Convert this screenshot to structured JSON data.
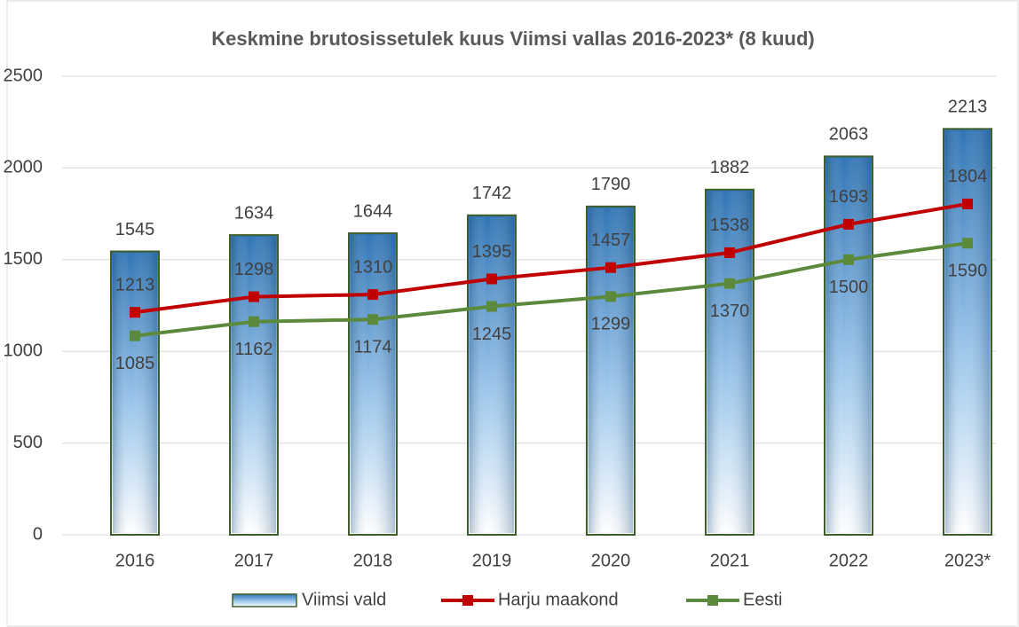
{
  "chart_data": {
    "type": "bar",
    "title": "Keskmine brutosissetulek kuus Viimsi vallas 2016-2023* (8 kuud)",
    "categories": [
      "2016",
      "2017",
      "2018",
      "2019",
      "2020",
      "2021",
      "2022",
      "2023*"
    ],
    "series": [
      {
        "name": "Viimsi vald",
        "type": "bar",
        "color": "#4f94d4",
        "values": [
          1545,
          1634,
          1644,
          1742,
          1790,
          1882,
          2063,
          2213
        ]
      },
      {
        "name": "Harju maakond",
        "type": "line",
        "color": "#c00000",
        "values": [
          1213,
          1298,
          1310,
          1395,
          1457,
          1538,
          1693,
          1804
        ]
      },
      {
        "name": "Eesti",
        "type": "line",
        "color": "#5b8a3c",
        "values": [
          1085,
          1162,
          1174,
          1245,
          1299,
          1370,
          1500,
          1590
        ]
      }
    ],
    "ylim": [
      0,
      2500
    ],
    "yticks": [
      0,
      500,
      1000,
      1500,
      2000,
      2500
    ],
    "grid": true,
    "legend": "bottom"
  }
}
